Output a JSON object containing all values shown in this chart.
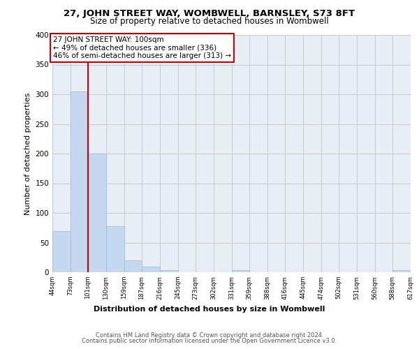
{
  "title": "27, JOHN STREET WAY, WOMBWELL, BARNSLEY, S73 8FT",
  "subtitle": "Size of property relative to detached houses in Wombwell",
  "xlabel": "Distribution of detached houses by size in Wombwell",
  "ylabel": "Number of detached properties",
  "bar_edges": [
    44,
    73,
    101,
    130,
    159,
    187,
    216,
    245,
    273,
    302,
    331,
    359,
    388,
    416,
    445,
    474,
    502,
    531,
    560,
    588,
    617
  ],
  "bar_heights": [
    70,
    305,
    200,
    78,
    20,
    10,
    3,
    0,
    0,
    0,
    3,
    0,
    0,
    0,
    0,
    0,
    0,
    0,
    0,
    3,
    0
  ],
  "bar_color": "#c5d8ef",
  "bar_edgecolor": "#9bbad8",
  "property_line_x": 101,
  "annotation_title": "27 JOHN STREET WAY: 100sqm",
  "annotation_line1": "← 49% of detached houses are smaller (336)",
  "annotation_line2": "46% of semi-detached houses are larger (313) →",
  "annotation_box_color": "#ffffff",
  "annotation_box_edgecolor": "#cc0000",
  "property_line_color": "#cc0000",
  "tick_labels": [
    "44sqm",
    "73sqm",
    "101sqm",
    "130sqm",
    "159sqm",
    "187sqm",
    "216sqm",
    "245sqm",
    "273sqm",
    "302sqm",
    "331sqm",
    "359sqm",
    "388sqm",
    "416sqm",
    "445sqm",
    "474sqm",
    "502sqm",
    "531sqm",
    "560sqm",
    "588sqm",
    "617sqm"
  ],
  "ylim": [
    0,
    400
  ],
  "yticks": [
    0,
    50,
    100,
    150,
    200,
    250,
    300,
    350,
    400
  ],
  "grid_color": "#cccccc",
  "axes_bg_color": "#e8eef6",
  "fig_bg_color": "#ffffff",
  "footer_line1": "Contains HM Land Registry data © Crown copyright and database right 2024.",
  "footer_line2": "Contains public sector information licensed under the Open Government Licence v3.0."
}
